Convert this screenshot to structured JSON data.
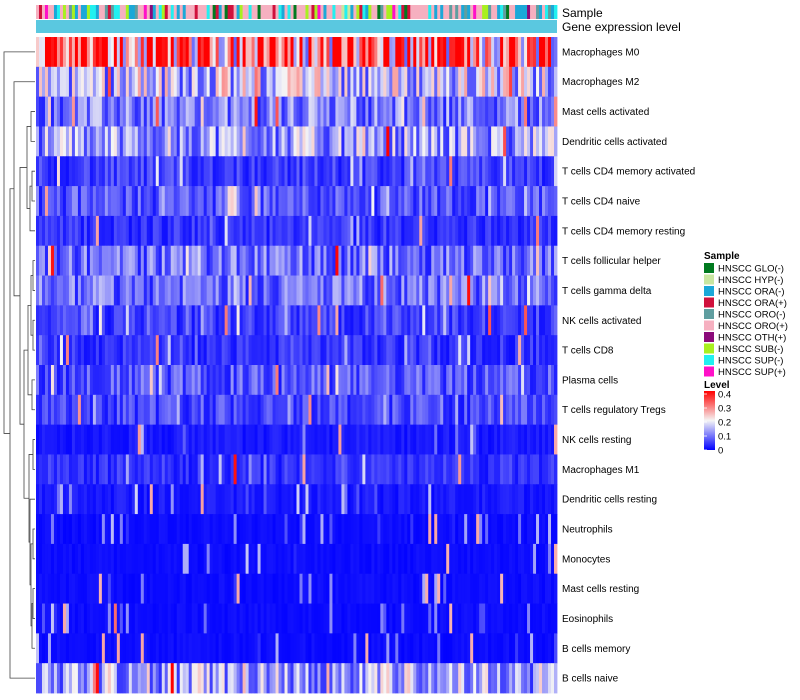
{
  "chart_data": {
    "type": "heatmap",
    "annotation_tracks": [
      "Sample",
      "Gene expression level"
    ],
    "rows": [
      "Macrophages M0",
      "Macrophages M2",
      "Mast cells activated",
      "Dendritic cells activated",
      "T cells CD4 memory activated",
      "T cells CD4 naive",
      "T cells CD4 memory resting",
      "T cells follicular helper",
      "T cells gamma delta",
      "NK cells activated",
      "T cells CD8",
      "Plasma cells",
      "T cells regulatory  Tregs",
      "NK cells resting",
      "Macrophages M1",
      "Dendritic cells resting",
      "Neutrophils",
      "Monocytes",
      "Mast cells resting",
      "Eosinophils",
      "B cells memory",
      "B cells naive"
    ],
    "row_mean_levels": [
      0.3,
      0.16,
      0.1,
      0.13,
      0.05,
      0.07,
      0.04,
      0.09,
      0.09,
      0.05,
      0.04,
      0.07,
      0.06,
      0.02,
      0.04,
      0.02,
      0.01,
      0.01,
      0.01,
      0.01,
      0.01,
      0.14
    ],
    "sample_legend": {
      "title": "Sample",
      "items": [
        {
          "label": "HNSCC GLO(-)",
          "color": "#007a1f"
        },
        {
          "label": "HNSCC HYP(-)",
          "color": "#c8e6a0"
        },
        {
          "label": "HNSCC ORA(-)",
          "color": "#1ba8d8"
        },
        {
          "label": "HNSCC ORA(+)",
          "color": "#d0113c"
        },
        {
          "label": "HNSCC ORO(-)",
          "color": "#5f9ea0"
        },
        {
          "label": "HNSCC ORO(+)",
          "color": "#f6b0c0"
        },
        {
          "label": "HNSCC OTH(+)",
          "color": "#8b0a7a"
        },
        {
          "label": "HNSCC SUB(-)",
          "color": "#a8f020"
        },
        {
          "label": "HNSCC SUP(-)",
          "color": "#22f0f0"
        },
        {
          "label": "HNSCC SUP(+)",
          "color": "#ff10c8"
        }
      ]
    },
    "level_legend": {
      "title": "Level",
      "ticks": [
        "0.4",
        "0.3",
        "0.2",
        "0.1",
        "0"
      ],
      "range": [
        0,
        0.4
      ],
      "colors": {
        "low": "#0000ff",
        "mid": "#f5f5f5",
        "high": "#ff0000"
      }
    },
    "gene_expression_bar_color": "#5ac8e0"
  }
}
